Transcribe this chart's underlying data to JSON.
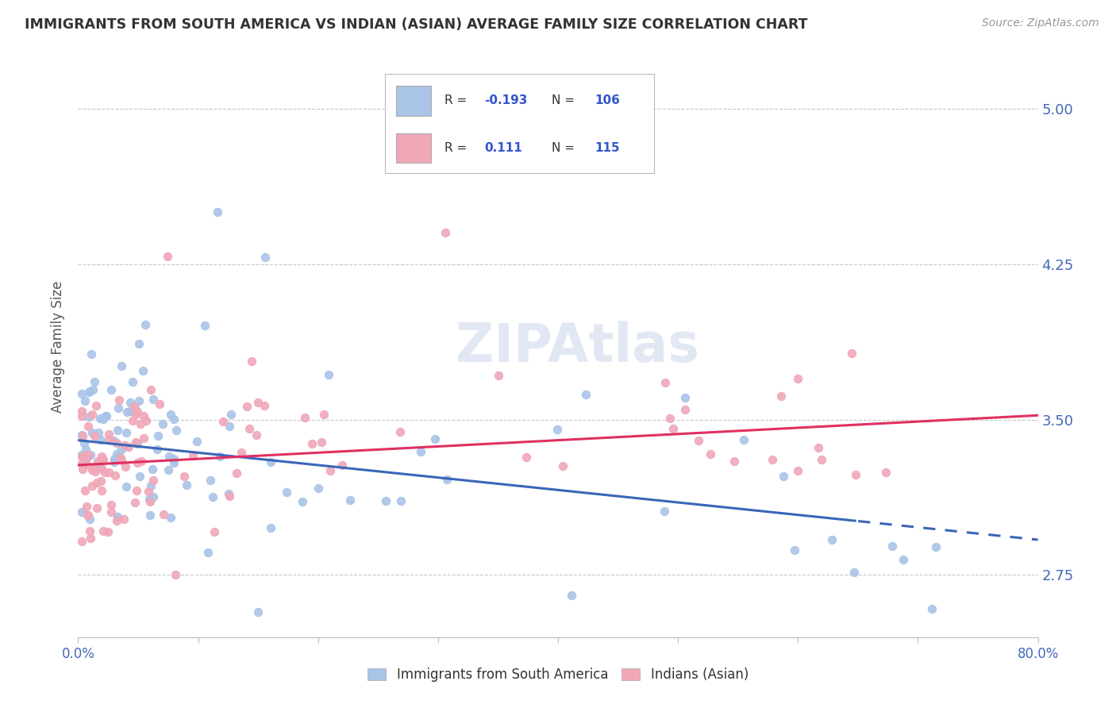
{
  "title": "IMMIGRANTS FROM SOUTH AMERICA VS INDIAN (ASIAN) AVERAGE FAMILY SIZE CORRELATION CHART",
  "source": "Source: ZipAtlas.com",
  "ylabel": "Average Family Size",
  "yticks": [
    2.75,
    3.5,
    4.25,
    5.0
  ],
  "xlim": [
    0.0,
    80.0
  ],
  "ylim": [
    2.45,
    5.25
  ],
  "legend_blue_R": "-0.193",
  "legend_blue_N": "106",
  "legend_pink_R": "0.111",
  "legend_pink_N": "115",
  "blue_color": "#aac4e8",
  "pink_color": "#f0a8b8",
  "blue_line_color": "#3a66b8",
  "pink_line_color": "#e03060",
  "axis_color": "#4466bb",
  "grid_color": "#c8c8c8",
  "title_color": "#333333",
  "source_color": "#999999",
  "legend_text_color": "#333333",
  "legend_R_color": "#e03333",
  "legend_N_color": "#3355cc",
  "watermark_color": "#dde4f2",
  "bottom_legend_color": "#333333"
}
